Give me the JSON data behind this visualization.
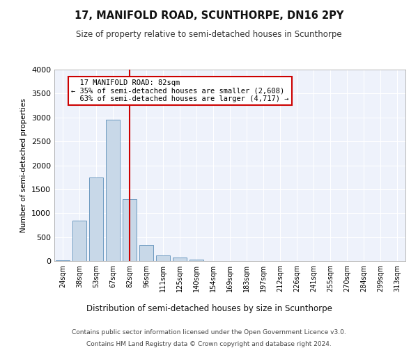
{
  "title": "17, MANIFOLD ROAD, SCUNTHORPE, DN16 2PY",
  "subtitle": "Size of property relative to semi-detached houses in Scunthorpe",
  "xlabel": "Distribution of semi-detached houses by size in Scunthorpe",
  "ylabel": "Number of semi-detached properties",
  "bin_labels": [
    "24sqm",
    "38sqm",
    "53sqm",
    "67sqm",
    "82sqm",
    "96sqm",
    "111sqm",
    "125sqm",
    "140sqm",
    "154sqm",
    "169sqm",
    "183sqm",
    "197sqm",
    "212sqm",
    "226sqm",
    "241sqm",
    "255sqm",
    "270sqm",
    "284sqm",
    "299sqm",
    "313sqm"
  ],
  "bar_values": [
    20,
    850,
    1750,
    2950,
    1300,
    330,
    110,
    70,
    30,
    5,
    2,
    0,
    0,
    0,
    0,
    0,
    0,
    0,
    0,
    0,
    0
  ],
  "highlight_bin": 4,
  "property_label": "17 MANIFOLD ROAD: 82sqm",
  "smaller_pct": "35%",
  "smaller_count": "2,608",
  "larger_pct": "63%",
  "larger_count": "4,717",
  "bar_color": "#c8d8e8",
  "bar_edge_color": "#5b8db8",
  "highlight_line_color": "#cc0000",
  "annotation_box_edge": "#cc0000",
  "background_color": "#ffffff",
  "plot_background": "#eef2fb",
  "grid_color": "#ffffff",
  "ylim": [
    0,
    4000
  ],
  "yticks": [
    0,
    500,
    1000,
    1500,
    2000,
    2500,
    3000,
    3500,
    4000
  ],
  "footer1": "Contains HM Land Registry data © Crown copyright and database right 2024.",
  "footer2": "Contains public sector information licensed under the Open Government Licence v3.0."
}
